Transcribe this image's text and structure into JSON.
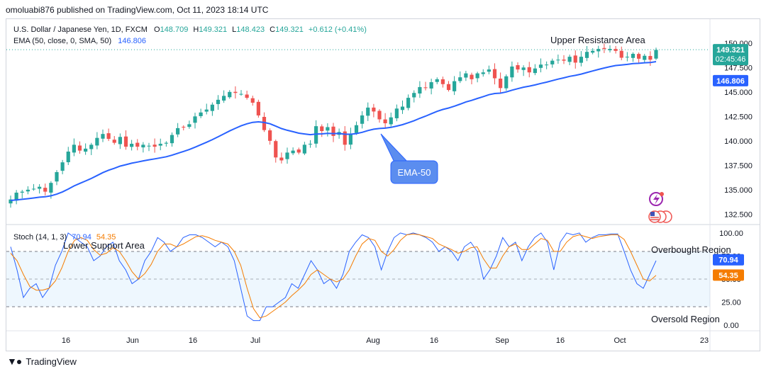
{
  "caption": "omoluabi876 published on TradingView.com, Oct 11, 2023 18:14 UTC",
  "legend": {
    "symbol": "U.S. Dollar / Japanese Yen, 1D, FXCM",
    "o_label": "O",
    "o": "148.709",
    "h_label": "H",
    "h": "149.321",
    "l_label": "L",
    "l": "148.423",
    "c_label": "C",
    "c": "149.321",
    "change": "+0.612 (+0.41%)",
    "ema_label": "EMA (50, close, 0, SMA, 50)",
    "ema_value": "146.806"
  },
  "annotations": {
    "upper_resistance": "Upper Resistance Area",
    "ema_callout": "EMA-50",
    "lower_support": "Lower Support Area",
    "overbought": "Overbought Region",
    "oversold": "Oversold Region"
  },
  "price_tags": {
    "last": "149.321",
    "countdown": "02:45:46",
    "ema": "146.806"
  },
  "stoch": {
    "label": "Stoch (14, 1, 3)",
    "k_value": "70.94",
    "d_value": "54.35"
  },
  "colors": {
    "up": "#26a69a",
    "down": "#ef5350",
    "ema": "#2962ff",
    "k_line": "#2962ff",
    "d_line": "#f57c00",
    "band": "#2196f3",
    "callout": "#5b8def"
  },
  "footer": {
    "brand": "TradingView"
  },
  "chart_data": [
    {
      "type": "candlestick",
      "title": "U.S. Dollar / Japanese Yen, 1D, FXCM",
      "y_ticks": [
        "150.000",
        "147.500",
        "145.000",
        "142.500",
        "140.000",
        "137.500",
        "135.000",
        "132.500"
      ],
      "x_ticks": [
        "16",
        "Jun",
        "16",
        "Jul",
        "Aug",
        "16",
        "Sep",
        "16",
        "Oct",
        "23"
      ],
      "ylim": [
        131.8,
        151.0
      ],
      "closes": [
        134.0,
        134.7,
        134.8,
        135.0,
        135.1,
        135.3,
        134.8,
        135.7,
        136.8,
        137.8,
        138.9,
        139.6,
        139.0,
        139.2,
        139.6,
        140.3,
        140.7,
        140.2,
        139.8,
        140.4,
        139.4,
        139.7,
        139.4,
        139.6,
        139.5,
        139.4,
        139.7,
        139.8,
        140.6,
        141.3,
        141.4,
        141.7,
        142.5,
        142.9,
        143.2,
        143.7,
        144.2,
        144.6,
        145.0,
        144.9,
        144.8,
        144.4,
        143.9,
        142.6,
        141.1,
        140.0,
        138.3,
        138.0,
        138.8,
        139.0,
        138.8,
        139.6,
        139.7,
        141.5,
        141.0,
        141.4,
        140.5,
        140.9,
        139.6,
        140.7,
        141.6,
        142.6,
        143.4,
        143.0,
        142.2,
        141.8,
        142.4,
        143.3,
        143.5,
        144.4,
        144.9,
        145.5,
        145.4,
        146.0,
        146.3,
        145.8,
        145.2,
        146.1,
        146.5,
        146.9,
        146.3,
        146.9,
        147.0,
        147.3,
        146.4,
        145.4,
        146.6,
        147.6,
        147.3,
        147.5,
        147.0,
        147.4,
        147.8,
        147.8,
        148.2,
        148.3,
        148.2,
        148.6,
        148.0,
        148.6,
        149.1,
        149.2,
        149.4,
        149.4,
        149.4,
        149.2,
        148.5,
        148.6,
        148.9,
        148.4,
        148.7,
        148.3,
        149.3
      ],
      "ema_start_end": [
        "133.9",
        "146.806"
      ]
    },
    {
      "type": "line",
      "title": "Stoch (14, 1, 3)",
      "y_ticks": [
        "100.00",
        "75.00",
        "50.00",
        "25.00",
        "0.00"
      ],
      "ylim": [
        -3,
        103
      ],
      "bands": [
        80,
        20
      ],
      "series": [
        {
          "name": "%K",
          "values": [
            85,
            60,
            30,
            40,
            45,
            30,
            40,
            65,
            80,
            100,
            95,
            90,
            85,
            70,
            75,
            85,
            90,
            70,
            60,
            45,
            50,
            70,
            80,
            95,
            90,
            80,
            85,
            95,
            98,
            98,
            95,
            90,
            85,
            90,
            85,
            70,
            40,
            10,
            5,
            5,
            20,
            20,
            25,
            30,
            45,
            40,
            55,
            70,
            60,
            45,
            50,
            40,
            55,
            80,
            90,
            98,
            95,
            85,
            60,
            80,
            95,
            100,
            98,
            100,
            98,
            95,
            90,
            80,
            85,
            80,
            70,
            85,
            90,
            80,
            50,
            60,
            75,
            95,
            85,
            90,
            70,
            85,
            95,
            100,
            90,
            60,
            90,
            100,
            98,
            100,
            90,
            95,
            98,
            98,
            99,
            99,
            80,
            60,
            45,
            40,
            55,
            70
          ]
        },
        {
          "name": "%D",
          "values": [
            78,
            70,
            55,
            42,
            38,
            38,
            40,
            48,
            62,
            80,
            92,
            95,
            92,
            82,
            76,
            78,
            84,
            80,
            70,
            58,
            50,
            56,
            66,
            80,
            88,
            88,
            85,
            88,
            92,
            96,
            97,
            95,
            92,
            90,
            88,
            80,
            65,
            40,
            18,
            8,
            10,
            15,
            20,
            25,
            32,
            38,
            45,
            55,
            60,
            55,
            50,
            47,
            50,
            60,
            75,
            88,
            94,
            92,
            80,
            75,
            82,
            92,
            98,
            99,
            98,
            96,
            94,
            88,
            85,
            82,
            78,
            80,
            84,
            85,
            72,
            62,
            62,
            75,
            85,
            88,
            82,
            82,
            88,
            94,
            92,
            80,
            80,
            90,
            96,
            98,
            96,
            94,
            96,
            97,
            98,
            98,
            93,
            80,
            65,
            50,
            48,
            54
          ]
        }
      ]
    }
  ]
}
